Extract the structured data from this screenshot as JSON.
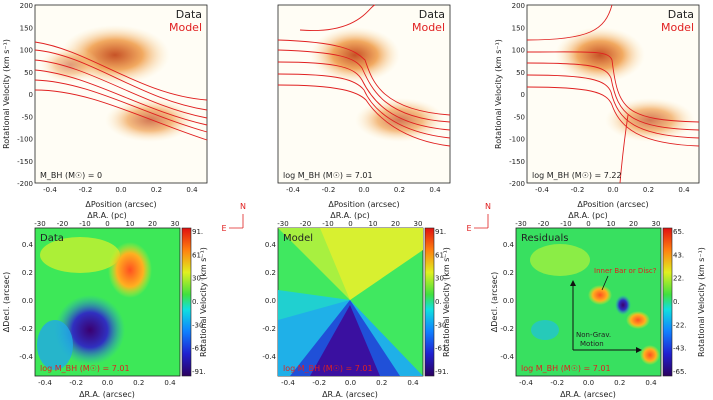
{
  "colors": {
    "data": "#000000",
    "model": "#e02020",
    "frame": "#222222"
  },
  "top_panels": [
    {
      "id": "pv1",
      "legend_data": "Data",
      "legend_model": "Model",
      "annotation": "M_BH (M☉) = 0",
      "black_hole_mass_log": 0,
      "has_ylabel": true
    },
    {
      "id": "pv2",
      "legend_data": "Data",
      "legend_model": "Model",
      "annotation": "log M_BH (M☉) = 7.01",
      "black_hole_mass_log": 7.01,
      "has_ylabel": false
    },
    {
      "id": "pv3",
      "legend_data": "Data",
      "legend_model": "Model",
      "annotation": "log M_BH (M☉) = 7.22",
      "black_hole_mass_log": 7.22,
      "has_ylabel": true
    }
  ],
  "top_axes": {
    "xlabel": "ΔPosition (arcsec)",
    "ylabel": "Rotational Velocity (km s⁻¹)",
    "xlim": [
      -0.5,
      0.5
    ],
    "ylim": [
      -200,
      200
    ],
    "xticks": [
      "-0.4",
      "-0.2",
      "0.0",
      "0.2",
      "0.4"
    ],
    "yticks": [
      "200",
      "150",
      "100",
      "50",
      "0",
      "-50",
      "-100",
      "-150",
      "-200"
    ]
  },
  "bottom_panels": [
    {
      "id": "map1",
      "title": "Data",
      "annotation": "log M_BH (M☉) = 7.01",
      "cbar_ticks": [
        "91.",
        "61.",
        "30.",
        "0.",
        "-30.",
        "-61.",
        "-91."
      ],
      "cbar_range": [
        -91,
        91
      ]
    },
    {
      "id": "map2",
      "title": "Model",
      "annotation": "log M_BH (M☉) = 7.01",
      "cbar_ticks": [
        "91.",
        "61.",
        "30.",
        "0.",
        "-30.",
        "-61.",
        "-91."
      ],
      "cbar_range": [
        -91,
        91
      ]
    },
    {
      "id": "map3",
      "title": "Residuals",
      "annotation": "log M_BH (M☉) = 7.01",
      "cbar_ticks": [
        "65.",
        "43.",
        "22.",
        "0.",
        "-22.",
        "-43.",
        "-65."
      ],
      "cbar_range": [
        -65,
        65
      ],
      "notes": {
        "inner": "Inner Bar or Disc?",
        "nongrav": "Non-Grav.",
        "motion": "Motion"
      }
    }
  ],
  "bottom_axes": {
    "top_label": "ΔR.A. (pc)",
    "top_ticks": [
      "-30",
      "-20",
      "-10",
      "0",
      "10",
      "20",
      "30"
    ],
    "xlabel": "ΔR.A. (arcsec)",
    "ylabel": "ΔDecl. (arcsec)",
    "xticks": [
      "-0.4",
      "-0.2",
      "0.0",
      "0.2",
      "0.4"
    ],
    "yticks": [
      "0.4",
      "0.2",
      "0.0",
      "-0.2",
      "-0.4"
    ],
    "cbar_label": "Rotational Velocity (km s⁻¹)"
  },
  "compass": {
    "north": "N",
    "east": "E"
  },
  "chart_data": [
    {
      "type": "line",
      "subtype": "position-velocity diagram",
      "title": "",
      "xlabel": "ΔPosition (arcsec)",
      "ylabel": "Rotational Velocity (km s⁻¹)",
      "xlim": [
        -0.5,
        0.5
      ],
      "ylim": [
        -200,
        200
      ],
      "series": [
        {
          "name": "Data"
        },
        {
          "name": "Model"
        }
      ],
      "black_hole_mass_log": 0
    },
    {
      "type": "line",
      "subtype": "position-velocity diagram",
      "title": "",
      "xlabel": "ΔPosition (arcsec)",
      "ylabel": "Rotational Velocity (km s⁻¹)",
      "xlim": [
        -0.5,
        0.5
      ],
      "ylim": [
        -200,
        200
      ],
      "series": [
        {
          "name": "Data"
        },
        {
          "name": "Model"
        }
      ],
      "black_hole_mass_log": 7.01
    },
    {
      "type": "line",
      "subtype": "position-velocity diagram",
      "title": "",
      "xlabel": "ΔPosition (arcsec)",
      "ylabel": "Rotational Velocity (km s⁻¹)",
      "xlim": [
        -0.5,
        0.5
      ],
      "ylim": [
        -200,
        200
      ],
      "series": [
        {
          "name": "Data"
        },
        {
          "name": "Model"
        }
      ],
      "black_hole_mass_log": 7.22
    },
    {
      "type": "heatmap",
      "title": "Data",
      "xlabel": "ΔR.A. (arcsec)",
      "ylabel": "ΔDecl. (arcsec)",
      "colorbar": "Rotational Velocity (km s⁻¹)",
      "range": [
        -91,
        91
      ]
    },
    {
      "type": "heatmap",
      "title": "Model",
      "xlabel": "ΔR.A. (arcsec)",
      "ylabel": "ΔDecl. (arcsec)",
      "colorbar": "Rotational Velocity (km s⁻¹)",
      "range": [
        -91,
        91
      ]
    },
    {
      "type": "heatmap",
      "title": "Residuals",
      "xlabel": "ΔR.A. (arcsec)",
      "ylabel": "ΔDecl. (arcsec)",
      "colorbar": "Rotational Velocity (km s⁻¹)",
      "range": [
        -65,
        65
      ]
    }
  ]
}
